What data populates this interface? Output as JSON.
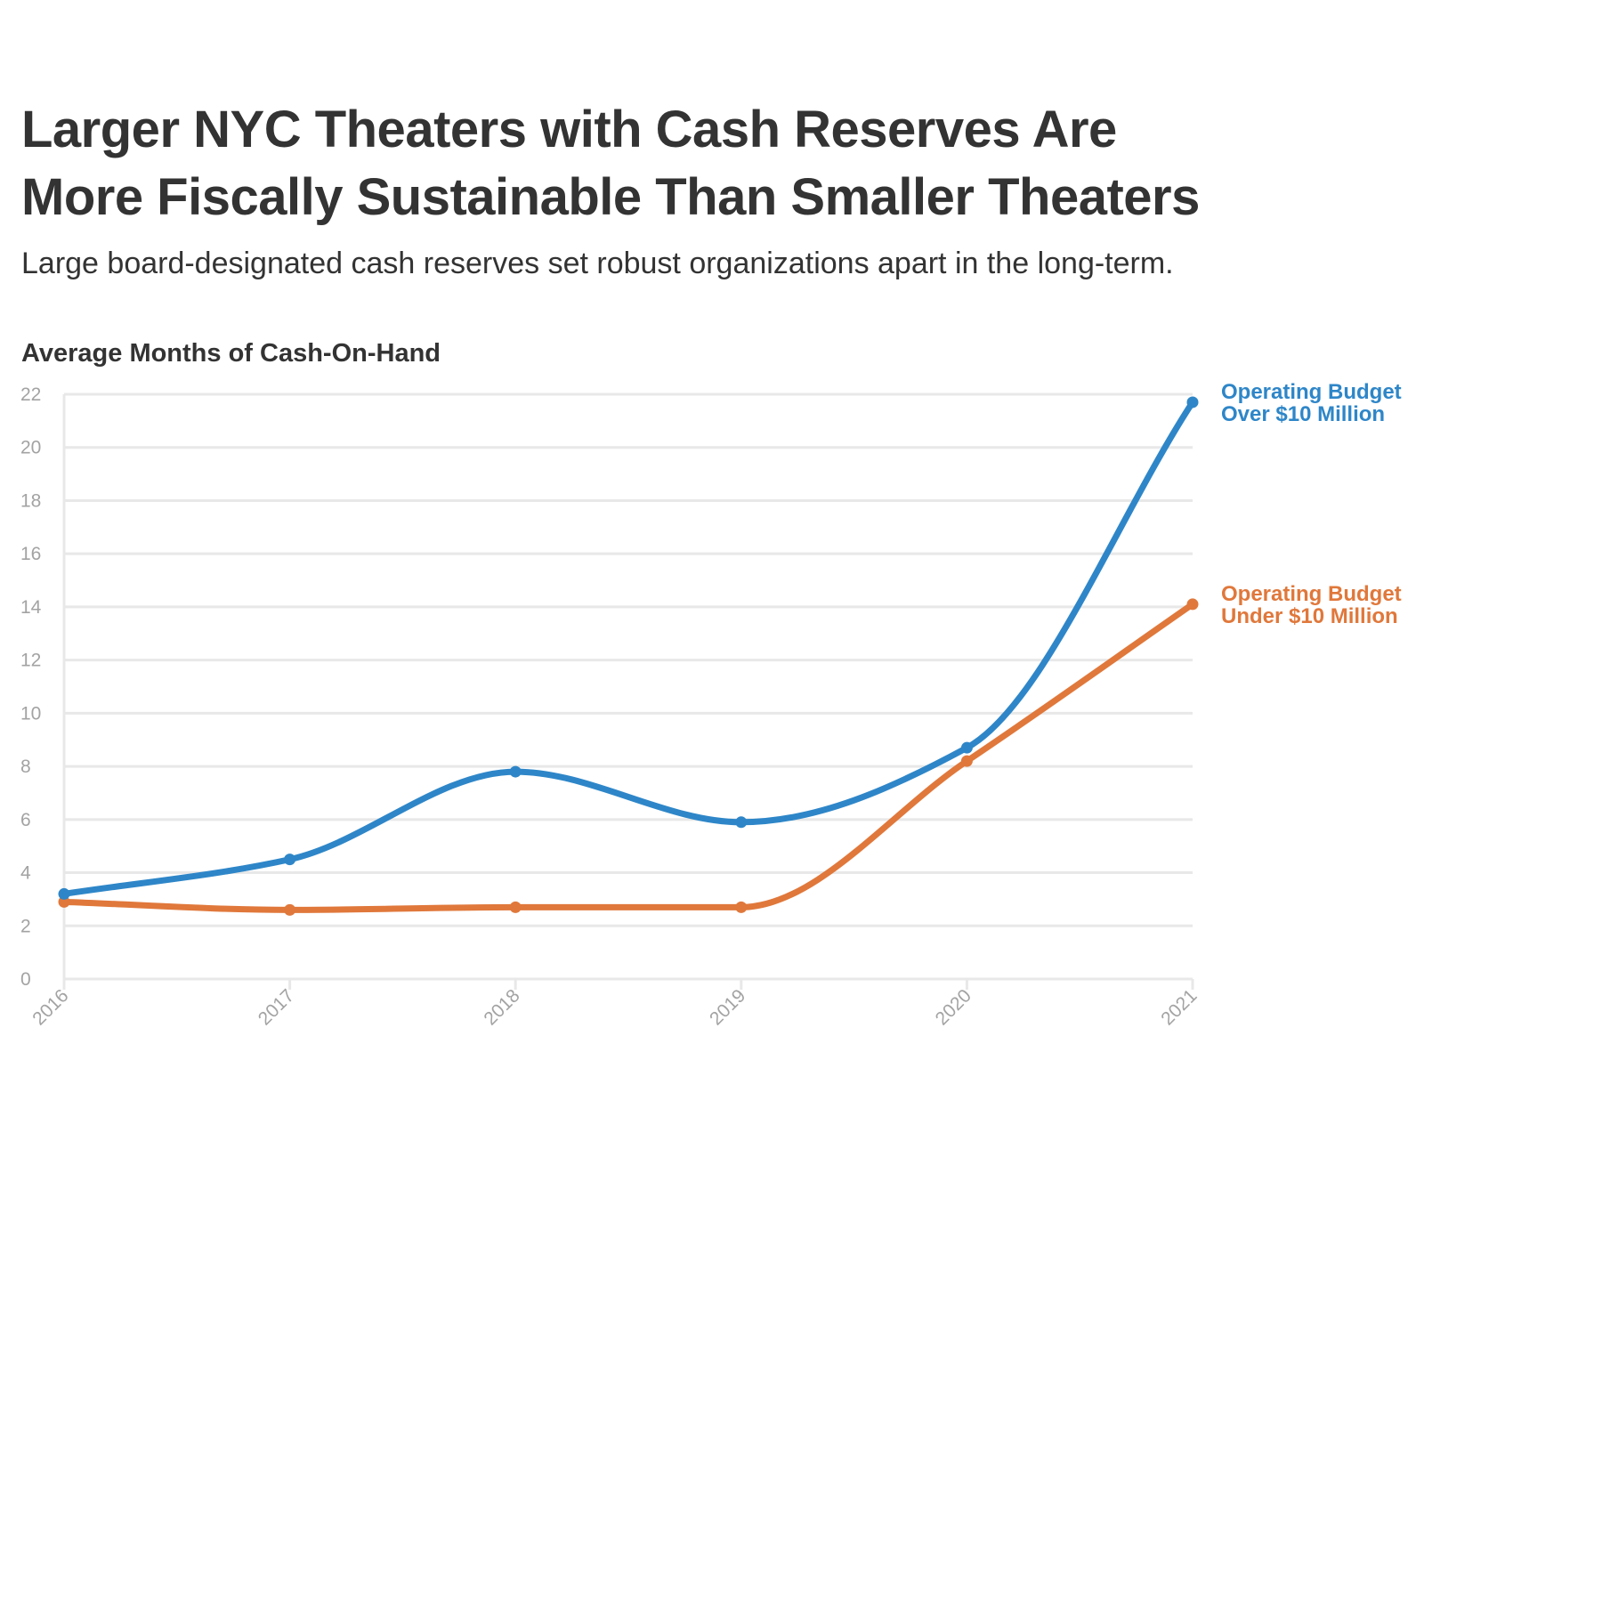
{
  "title_line1": "Larger NYC Theaters with Cash Reserves Are",
  "title_line2": "More Fiscally Sustainable Than Smaller Theaters",
  "subtitle": "Large board-designated cash reserves set robust organizations apart in the long-term.",
  "chart_data": {
    "type": "line",
    "ylabel": "Average Months of Cash-On-Hand",
    "xlabel": "",
    "ylim": [
      0,
      22
    ],
    "yticks": [
      0,
      2,
      4,
      6,
      8,
      10,
      12,
      14,
      16,
      18,
      20,
      22
    ],
    "categories": [
      "2016",
      "2017",
      "2018",
      "2019",
      "2020",
      "2021"
    ],
    "legend_placement": "direct labels at right end of lines",
    "grid": true,
    "series": [
      {
        "name": "Operating Budget Over $10 Million",
        "label_lines": [
          "Operating Budget",
          "Over $10 Million"
        ],
        "color": "#2e86c8",
        "values": [
          3.2,
          4.5,
          7.8,
          5.9,
          8.7,
          21.7
        ]
      },
      {
        "name": "Operating Budget Under $10 Million",
        "label_lines": [
          "Operating Budget",
          "Under $10 Million"
        ],
        "color": "#e0783b",
        "values": [
          2.9,
          2.6,
          2.7,
          2.7,
          8.2,
          14.1
        ]
      }
    ]
  }
}
